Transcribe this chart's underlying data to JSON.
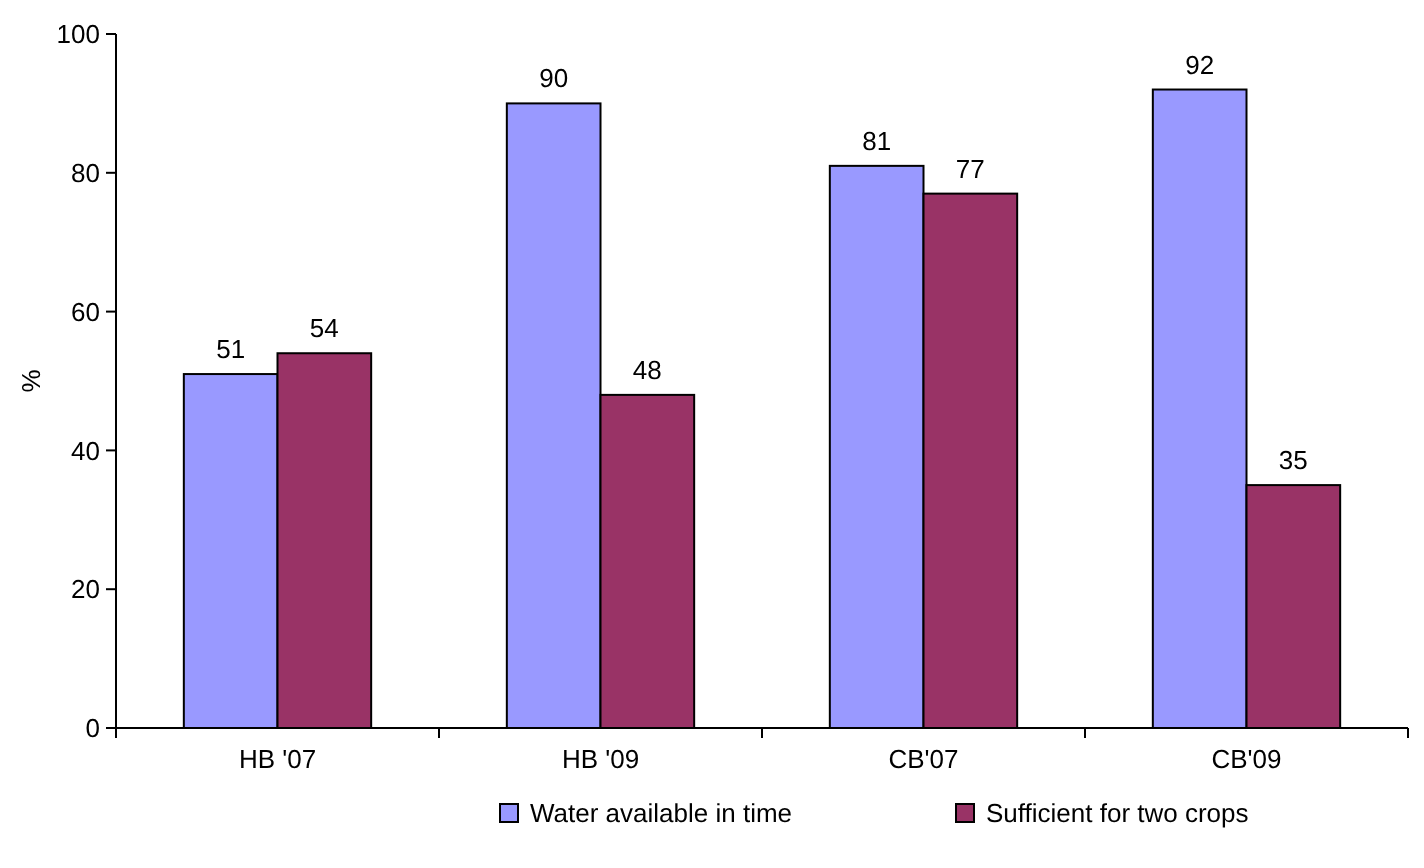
{
  "chart_data": {
    "type": "bar",
    "ylabel": "%",
    "categories": [
      "HB '07",
      "HB '09",
      "CB'07",
      "CB'09"
    ],
    "series": [
      {
        "name": "Water available in time",
        "color": "#9999ff",
        "values": [
          51,
          90,
          81,
          92
        ]
      },
      {
        "name": "Sufficient for two crops",
        "color": "#993366",
        "values": [
          54,
          48,
          77,
          35
        ]
      }
    ],
    "ylim": [
      0,
      100
    ],
    "yticks": [
      0,
      20,
      40,
      60,
      80,
      100
    ],
    "data_labels": true,
    "legend": "bottom",
    "grid": false
  }
}
